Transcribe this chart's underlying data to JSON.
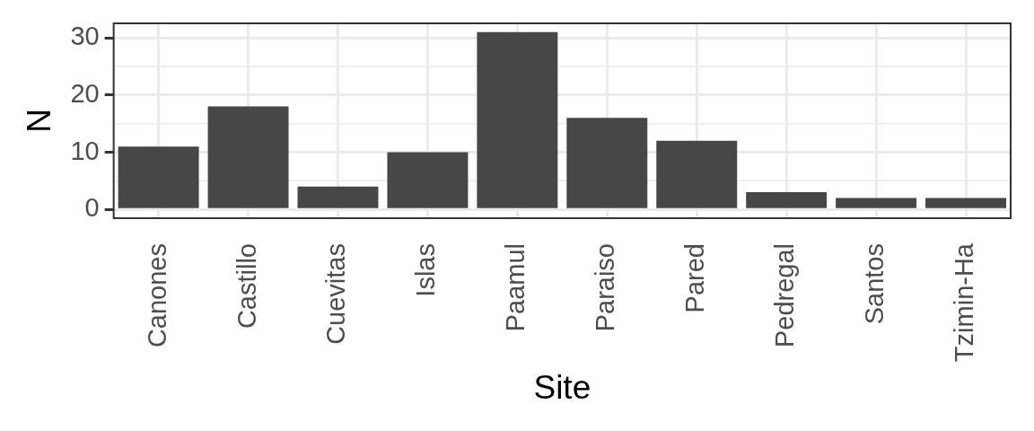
{
  "chart_data": {
    "type": "bar",
    "xlabel": "Site",
    "ylabel": "N",
    "categories": [
      "Canones",
      "Castillo",
      "Cuevitas",
      "Islas",
      "Paamul",
      "Paraiso",
      "Pared",
      "Pedregal",
      "Santos",
      "Tzimin-Ha"
    ],
    "values": [
      11,
      18,
      4,
      10,
      31,
      16,
      12,
      3,
      2,
      2
    ],
    "color": "#474747",
    "ylim": [
      -1.55,
      32.55
    ],
    "yticks": [
      0,
      10,
      20,
      30
    ],
    "grid": true,
    "legend": false
  }
}
